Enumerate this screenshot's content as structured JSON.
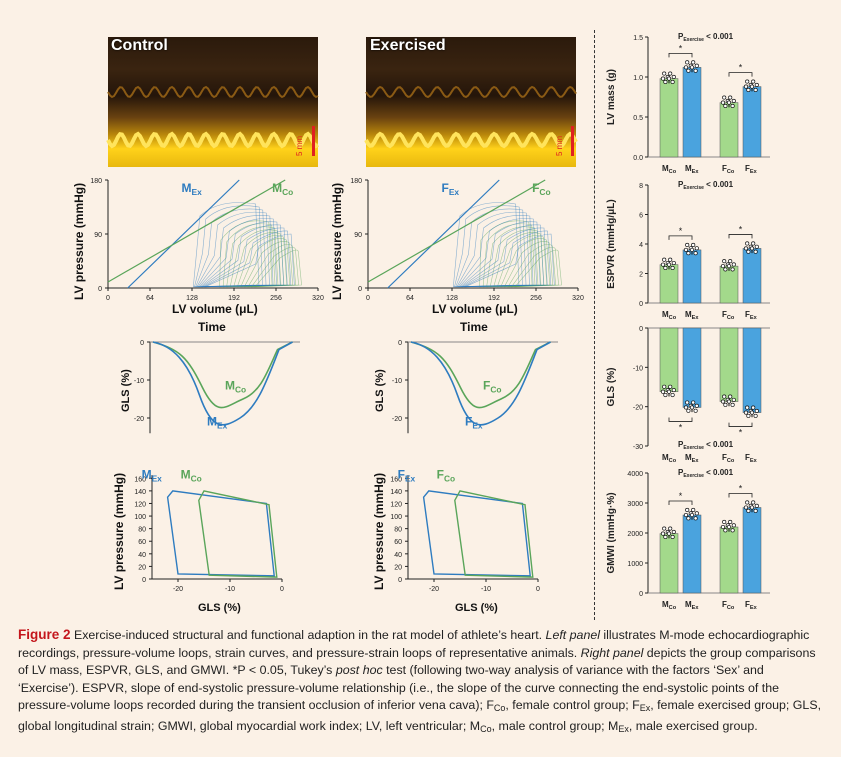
{
  "mmode": {
    "control_label": "Control",
    "exercised_label": "Exercised",
    "scale_label": "5 mm"
  },
  "pv": {
    "ylabel": "LV pressure (mmHg)",
    "xlabel": "LV volume (μL)",
    "yticks": [
      "0",
      "90",
      "180"
    ],
    "xticks": [
      "0",
      "64",
      "128",
      "192",
      "256",
      "320"
    ],
    "male_labels": {
      "ex": "M",
      "ex_sub": "Ex",
      "co": "M",
      "co_sub": "Co"
    },
    "female_labels": {
      "ex": "F",
      "ex_sub": "Ex",
      "co": "F",
      "co_sub": "Co"
    }
  },
  "strain": {
    "title": "Time",
    "ylabel": "GLS (%)",
    "yticks": [
      "0",
      "-10",
      "-20"
    ],
    "male_labels": {
      "co": "M",
      "co_sub": "Co",
      "ex": "M",
      "ex_sub": "Ex"
    },
    "female_labels": {
      "co": "F",
      "co_sub": "Co",
      "ex": "F",
      "ex_sub": "Ex"
    }
  },
  "psl": {
    "ylabel": "LV pressure (mmHg)",
    "xlabel": "GLS (%)",
    "yticks": [
      "0",
      "20",
      "40",
      "60",
      "80",
      "100",
      "120",
      "140",
      "160"
    ],
    "xticks": [
      "-20",
      "-10",
      "0"
    ],
    "male_labels": {
      "ex": "M",
      "ex_sub": "Ex",
      "co": "M",
      "co_sub": "Co"
    },
    "female_labels": {
      "ex": "F",
      "ex_sub": "Ex",
      "co": "F",
      "co_sub": "Co"
    }
  },
  "colors": {
    "control": "#5aa55a",
    "exercised": "#2e7cc0",
    "control_bar": "#a3d98b",
    "exercised_bar": "#4aa3de"
  },
  "bars": {
    "group_labels": [
      [
        "M",
        "Co"
      ],
      [
        "M",
        "Ex"
      ],
      [
        "F",
        "Co"
      ],
      [
        "F",
        "Ex"
      ]
    ],
    "p_text": "P",
    "p_sub": "Exercise",
    "p_value": "< 0.001",
    "star": "*"
  },
  "chart_data": [
    {
      "type": "bar",
      "ylabel": "LV mass (g)",
      "yticks": [
        "0.0",
        "0.5",
        "1.0",
        "1.5"
      ],
      "ylim": [
        0,
        1.5
      ],
      "categories": [
        "MCo",
        "MEx",
        "FCo",
        "FEx"
      ],
      "values": [
        0.98,
        1.12,
        0.68,
        0.88
      ]
    },
    {
      "type": "bar",
      "ylabel": "ESPVR (mmHg/μL)",
      "yticks": [
        "0",
        "2",
        "4",
        "6",
        "8"
      ],
      "ylim": [
        0,
        8
      ],
      "categories": [
        "MCo",
        "MEx",
        "FCo",
        "FEx"
      ],
      "values": [
        2.6,
        3.6,
        2.5,
        3.7
      ]
    },
    {
      "type": "bar",
      "ylabel": "GLS (%)",
      "yticks": [
        "0",
        "-10",
        "-20",
        "-30"
      ],
      "ylim": [
        -30,
        0
      ],
      "categories": [
        "MCo",
        "MEx",
        "FCo",
        "FEx"
      ],
      "values": [
        -16.2,
        -20.2,
        -18.7,
        -21.5
      ]
    },
    {
      "type": "bar",
      "ylabel": "GMWI (mmHg·%)",
      "yticks": [
        "0",
        "1000",
        "2000",
        "3000",
        "4000"
      ],
      "ylim": [
        0,
        4000
      ],
      "categories": [
        "MCo",
        "MEx",
        "FCo",
        "FEx"
      ],
      "values": [
        1980,
        2600,
        2200,
        2850
      ]
    }
  ],
  "caption": {
    "figure": "Figure 2",
    "text1": " Exercise-induced structural and functional adaption in the rat model of athlete’s heart. ",
    "left_panel": "Left panel",
    "text2": " illustrates M-mode echocardiographic recordings, pressure-volume loops, strain curves, and pressure-strain loops of representative animals. ",
    "right_panel": "Right panel",
    "text3": " depicts the group comparisons of LV mass, ESPVR, GLS, and GMWI. *P < 0.05, Tukey’s ",
    "post_hoc": "post hoc",
    "text4": " test (following two-way analysis of variance with the factors ‘Sex’ and ‘Exercise’). ESPVR, slope of end-systolic pressure-volume relationship (i.e., the slope of the curve connecting the end-systolic points of the pressure-volume loops recorded during the transient occlusion of inferior vena cava); F",
    "sub_co": "Co",
    "text5": ", female control group; F",
    "sub_ex": "Ex",
    "text6": ", female exercised group; GLS, global longitudinal strain; GMWI, global myocardial work index; LV, left ventricular; M",
    "text7": ", male control group; M",
    "text8": ", male exercised group."
  }
}
